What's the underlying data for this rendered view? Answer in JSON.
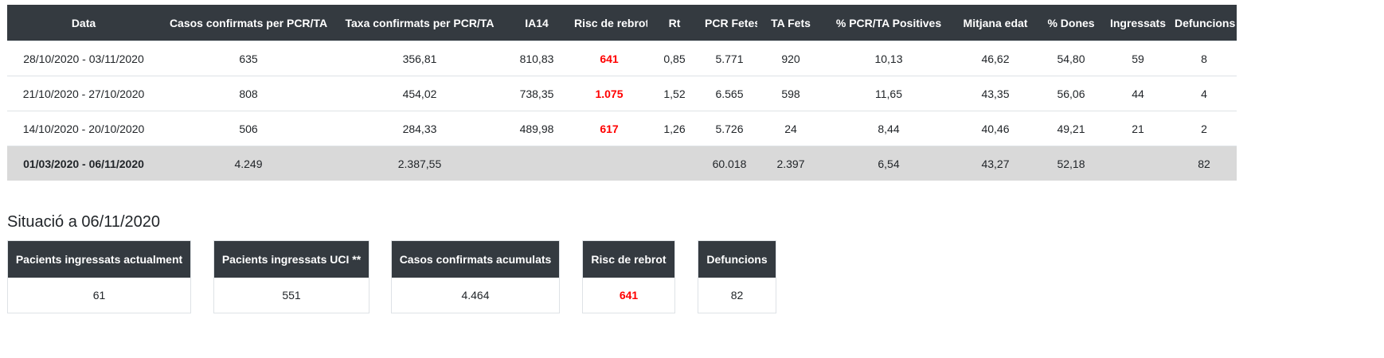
{
  "table": {
    "headers": [
      "Data",
      "Casos confirmats per PCR/TA",
      "Taxa confirmats per PCR/TA",
      "IA14",
      "Risc de rebrot",
      "Rt",
      "PCR Fetes",
      "TA Fets",
      "% PCR/TA Positives",
      "Mitjana edat",
      "% Dones",
      "Ingressats",
      "Defuncions"
    ],
    "rows": [
      {
        "date": "28/10/2020 - 03/11/2020",
        "casos": "635",
        "taxa": "356,81",
        "ia14": "810,83",
        "risc": "641",
        "rt": "0,85",
        "pcr": "5.771",
        "ta": "920",
        "positives": "10,13",
        "edat": "46,62",
        "dones": "54,80",
        "ingressats": "59",
        "defuncions": "8"
      },
      {
        "date": "21/10/2020 - 27/10/2020",
        "casos": "808",
        "taxa": "454,02",
        "ia14": "738,35",
        "risc": "1.075",
        "rt": "1,52",
        "pcr": "6.565",
        "ta": "598",
        "positives": "11,65",
        "edat": "43,35",
        "dones": "56,06",
        "ingressats": "44",
        "defuncions": "4"
      },
      {
        "date": "14/10/2020 - 20/10/2020",
        "casos": "506",
        "taxa": "284,33",
        "ia14": "489,98",
        "risc": "617",
        "rt": "1,26",
        "pcr": "5.726",
        "ta": "24",
        "positives": "8,44",
        "edat": "40,46",
        "dones": "49,21",
        "ingressats": "21",
        "defuncions": "2"
      }
    ],
    "total": {
      "date": "01/03/2020 - 06/11/2020",
      "casos": "4.249",
      "taxa": "2.387,55",
      "ia14": "",
      "risc": "",
      "rt": "",
      "pcr": "60.018",
      "ta": "2.397",
      "positives": "6,54",
      "edat": "43,27",
      "dones": "52,18",
      "ingressats": "",
      "defuncions": "82"
    }
  },
  "situacio": {
    "title": "Situació a 06/11/2020",
    "cards": [
      {
        "label": "Pacients ingressats actualment",
        "value": "61"
      },
      {
        "label": "Pacients ingressats UCI **",
        "value": "551"
      },
      {
        "label": "Casos confirmats acumulats",
        "value": "4.464"
      },
      {
        "label": "Risc de rebrot",
        "value": "641"
      },
      {
        "label": "Defuncions",
        "value": "82"
      }
    ]
  },
  "colors": {
    "header_bg": "#343a40",
    "header_text": "#ffffff",
    "risk_text": "#ff0000",
    "total_row_bg": "#d9d9d9"
  }
}
